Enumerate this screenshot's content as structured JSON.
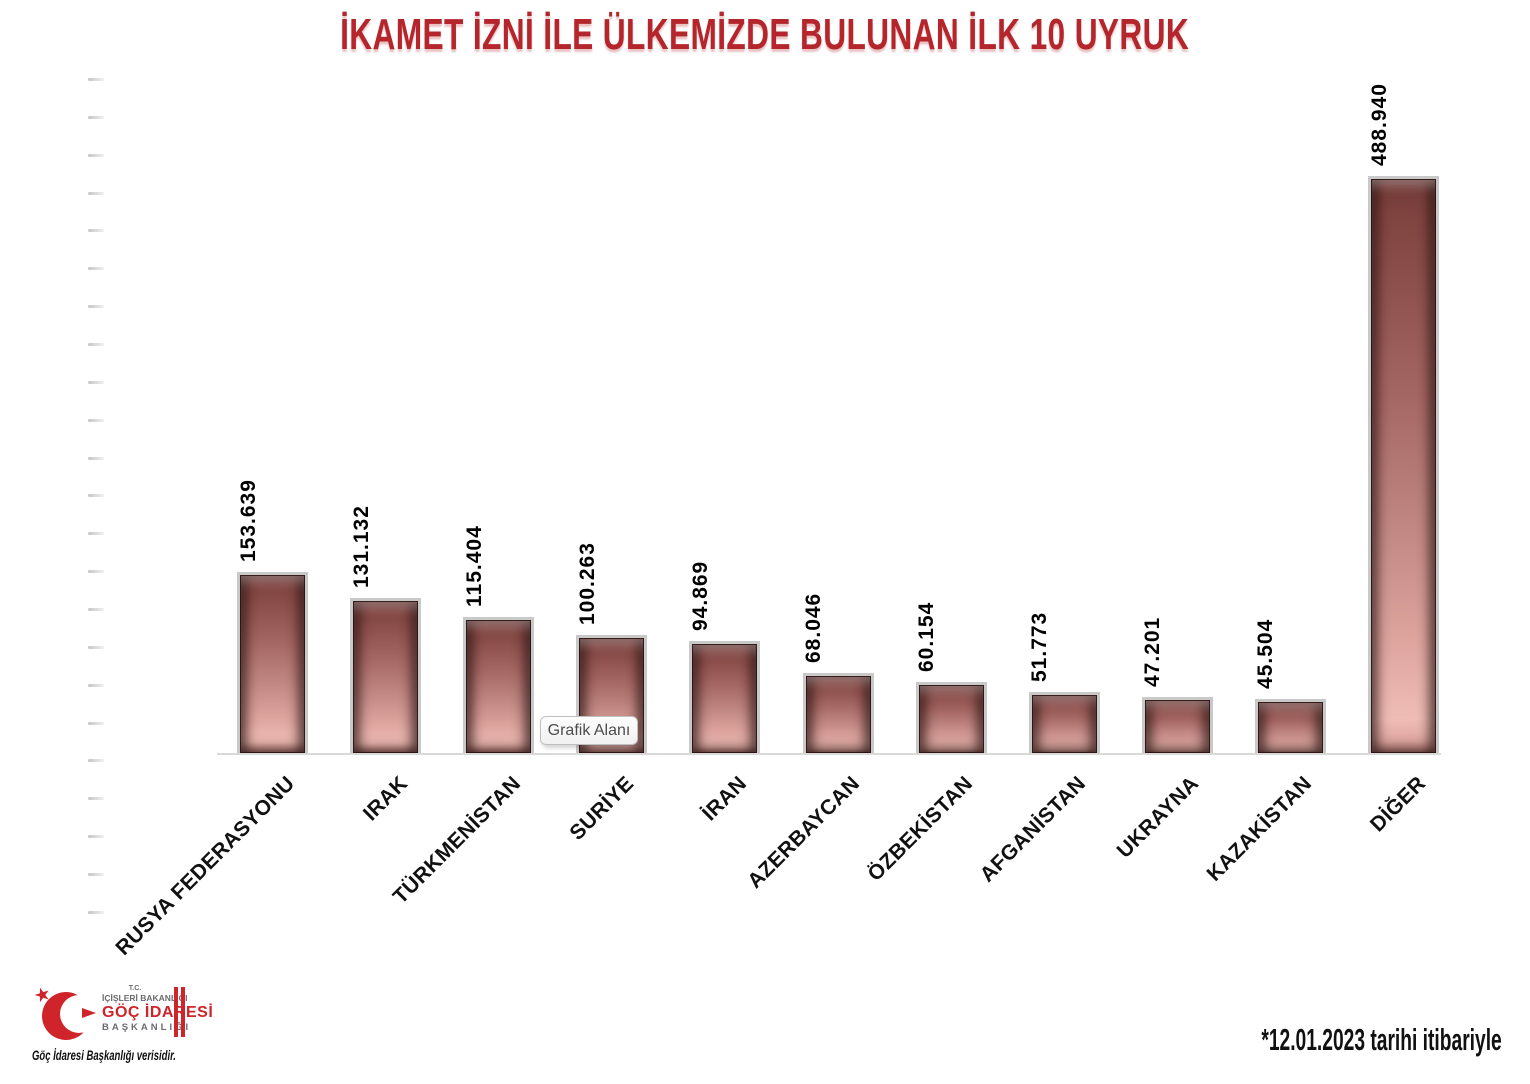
{
  "title": {
    "text": "İKAMET İZNİ İLE ÜLKEMİZDE BULUNAN İLK 10 UYRUK",
    "color": "#B4262C"
  },
  "chart_data": {
    "type": "bar",
    "title": "İKAMET İZNİ İLE ÜLKEMİZDE BULUNAN İLK 10 UYRUK",
    "categories": [
      "RUSYA FEDERASYONU",
      "IRAK",
      "TÜRKMENİSTAN",
      "SURİYE",
      "İRAN",
      "AZERBAYCAN",
      "ÖZBEKİSTAN",
      "AFGANİSTAN",
      "UKRAYNA",
      "KAZAKİSTAN",
      "DİĞER"
    ],
    "values": [
      153639,
      131132,
      115404,
      100263,
      94869,
      68046,
      60154,
      51773,
      47201,
      45504,
      488940
    ],
    "value_labels": [
      "153.639",
      "131.132",
      "115.404",
      "100.263",
      "94.869",
      "68.046",
      "60.154",
      "51.773",
      "47.201",
      "45.504",
      "488.940"
    ],
    "xlabel": "",
    "ylabel": "",
    "ylim": [
      0,
      500000
    ],
    "grid": false,
    "legend": false,
    "bar_color_top": "#6E3835",
    "bar_color_bottom": "#EFBCB5"
  },
  "tooltip": {
    "label": "Grafik Alanı"
  },
  "footer": {
    "logo": {
      "line1": "T.C.",
      "line2": "İÇİŞLERİ BAKANLIĞI",
      "line3": "GÖÇ İDARESİ",
      "line4": "BAŞKANLIĞI",
      "caption": "Göç İdaresi Başkanlığı verisidir.",
      "accent_color": "#D0242B"
    },
    "note": "*12.01.2023 tarihi itibariyle"
  }
}
